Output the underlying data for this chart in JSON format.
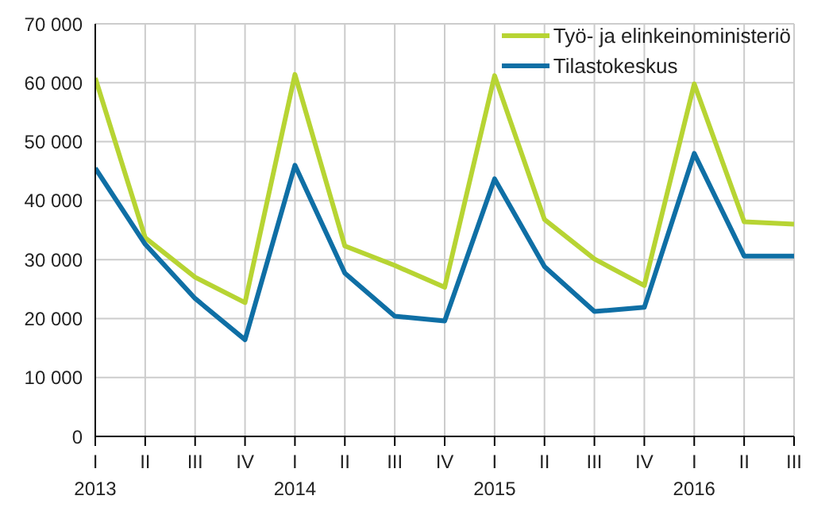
{
  "chart_data": {
    "type": "line",
    "categories": [
      "I 2013",
      "II",
      "III",
      "IV",
      "I 2014",
      "II",
      "III",
      "IV",
      "I 2015",
      "II",
      "III",
      "IV",
      "I 2016",
      "II",
      "III"
    ],
    "series": [
      {
        "name": "Työ- ja elinkeinoministeriö",
        "color": "#b7d433",
        "values": [
          60800,
          33700,
          27000,
          22700,
          61400,
          32300,
          29000,
          25300,
          61200,
          36800,
          30100,
          25600,
          59800,
          36400,
          36000
        ]
      },
      {
        "name": "Tilastokeskus",
        "color": "#0f6fa5",
        "values": [
          45500,
          32600,
          23400,
          16400,
          46000,
          27700,
          20400,
          19600,
          43700,
          28800,
          21200,
          21900,
          48000,
          30600,
          30600
        ]
      }
    ],
    "ylim": [
      0,
      70000
    ],
    "yticks": [
      0,
      {
        "value": 10000,
        "label": "10 000"
      },
      {
        "value": 20000,
        "label": "20 000"
      },
      {
        "value": 30000,
        "label": "30 000"
      },
      {
        "value": 40000,
        "label": "40 000"
      },
      {
        "value": 50000,
        "label": "50 000"
      },
      {
        "value": 60000,
        "label": "60 000"
      },
      {
        "value": 70000,
        "label": "70 000"
      }
    ],
    "grid": true,
    "legend": "top right",
    "marker": "none",
    "line_style": "solid"
  }
}
